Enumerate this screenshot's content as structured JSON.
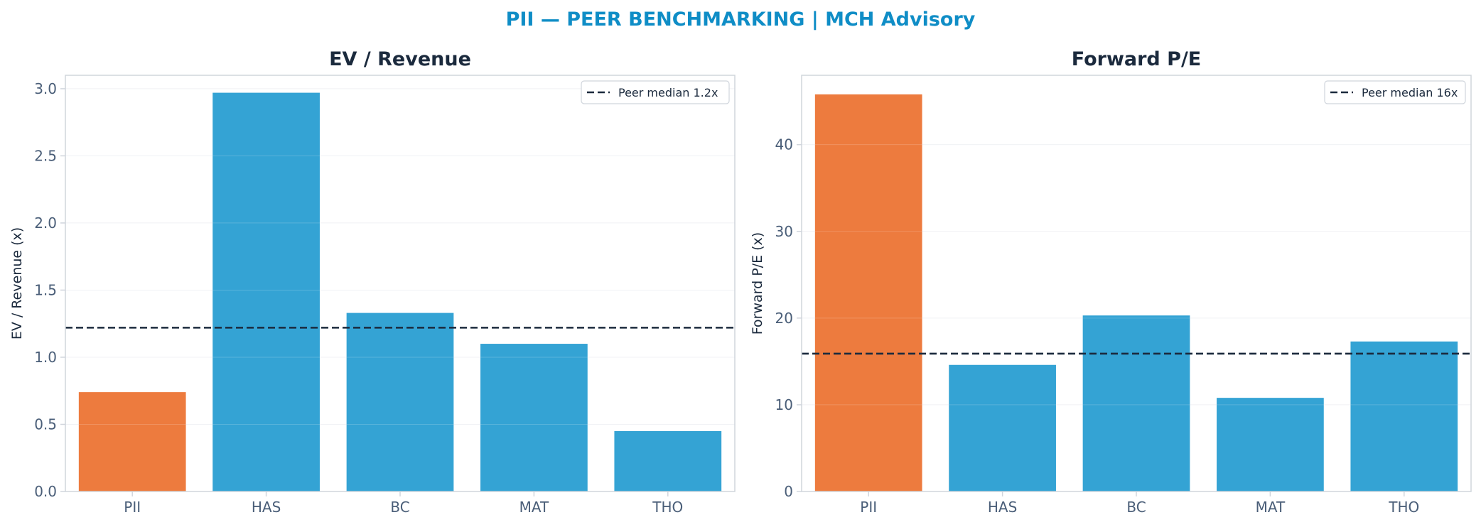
{
  "figure": {
    "title": "PII — PEER BENCHMARKING | MCH Advisory",
    "title_color": "#0f8dc6"
  },
  "colors": {
    "highlight": "#ed7b3e",
    "peer": "#34a3d4",
    "median_line": "#1b2a3d",
    "axis": "#d0d5dc",
    "grid": "#eef0f3",
    "tick_text": "#4a5e78"
  },
  "chart_data": [
    {
      "type": "bar",
      "title": "EV / Revenue",
      "ylabel": "EV / Revenue (x)",
      "xlabel": "",
      "categories": [
        "PII",
        "HAS",
        "BC",
        "MAT",
        "THO"
      ],
      "values": [
        0.74,
        2.97,
        1.33,
        1.1,
        0.45
      ],
      "highlight": "PII",
      "ylim": [
        0,
        3.1
      ],
      "yticks": [
        0.0,
        0.5,
        1.0,
        1.5,
        2.0,
        2.5,
        3.0
      ],
      "ytick_labels": [
        "0.0",
        "0.5",
        "1.0",
        "1.5",
        "2.0",
        "2.5",
        "3.0"
      ],
      "reference_line": {
        "value": 1.22,
        "label": "Peer median 1.2x",
        "style": "dashed"
      },
      "legend_position": "top-right",
      "grid": true
    },
    {
      "type": "bar",
      "title": "Forward P/E",
      "ylabel": "Forward P/E (x)",
      "xlabel": "",
      "categories": [
        "PII",
        "HAS",
        "BC",
        "MAT",
        "THO"
      ],
      "values": [
        45.8,
        14.6,
        20.3,
        10.8,
        17.3
      ],
      "highlight": "PII",
      "ylim": [
        0,
        48
      ],
      "yticks": [
        0,
        10,
        20,
        30,
        40
      ],
      "ytick_labels": [
        "0",
        "10",
        "20",
        "30",
        "40"
      ],
      "reference_line": {
        "value": 15.9,
        "label": "Peer median 16x",
        "style": "dashed"
      },
      "legend_position": "top-right",
      "grid": true
    }
  ]
}
